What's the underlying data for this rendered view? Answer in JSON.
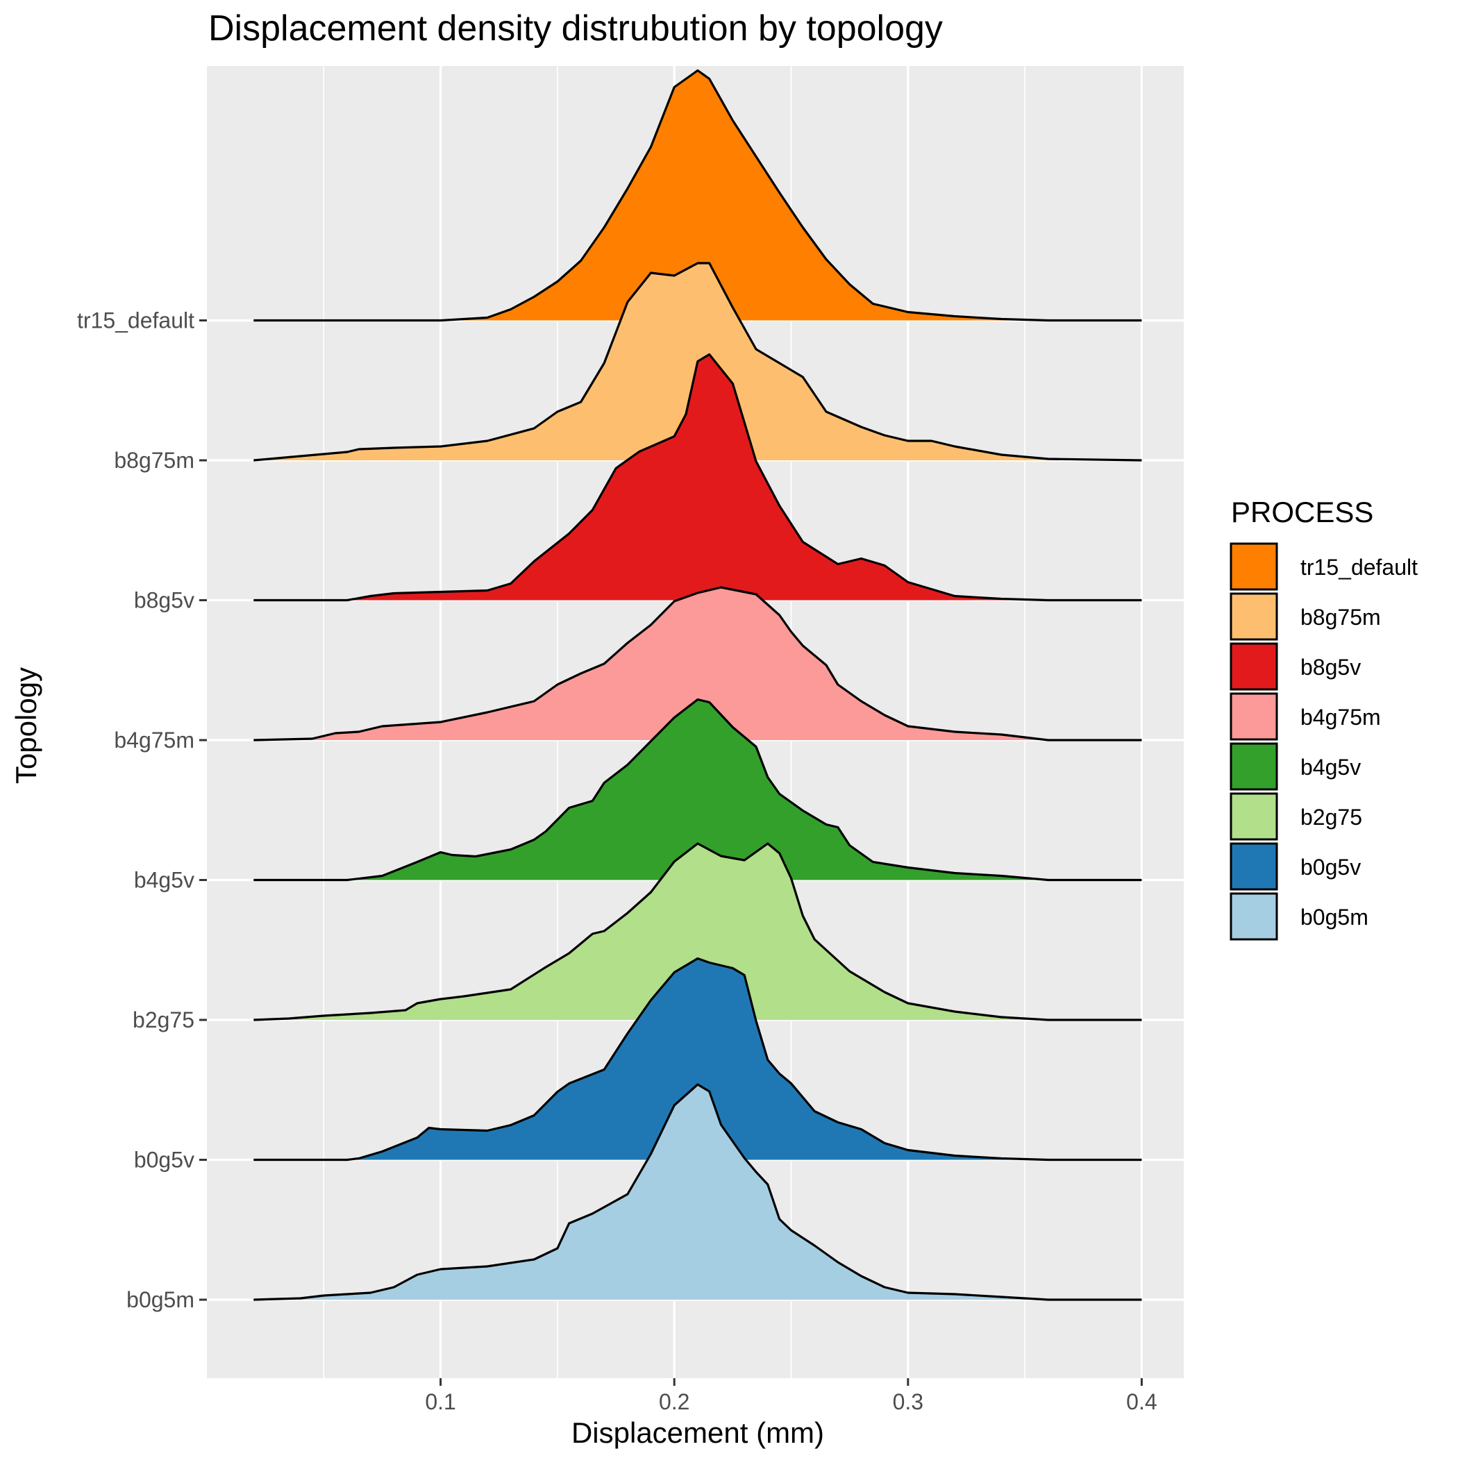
{
  "chart_data": {
    "type": "area",
    "subtype": "ridgeline",
    "title": "Displacement density distrubution by topology",
    "xlabel": "Displacement (mm)",
    "ylabel": "Topology",
    "xlim": [
      0.0,
      0.418
    ],
    "x_ticks": [
      "0.1",
      "0.2",
      "0.3",
      "0.4"
    ],
    "x_tick_values": [
      0.1,
      0.2,
      0.3,
      0.4
    ],
    "grid": true,
    "legend": {
      "title": "PROCESS",
      "position": "right"
    },
    "categories": [
      "b0g5m",
      "b0g5v",
      "b2g75",
      "b4g5v",
      "b4g75m",
      "b8g5v",
      "b8g75m",
      "tr15_default"
    ],
    "legend_order": [
      "tr15_default",
      "b8g75m",
      "b8g5v",
      "b4g75m",
      "b4g5v",
      "b2g75",
      "b0g5v",
      "b0g5m"
    ],
    "series": [
      {
        "name": "b0g5m",
        "color": "#a6cee3",
        "points": [
          [
            0.02,
            0
          ],
          [
            0.04,
            0.01
          ],
          [
            0.05,
            0.03
          ],
          [
            0.06,
            0.04
          ],
          [
            0.07,
            0.05
          ],
          [
            0.08,
            0.09
          ],
          [
            0.09,
            0.18
          ],
          [
            0.1,
            0.22
          ],
          [
            0.12,
            0.24
          ],
          [
            0.14,
            0.29
          ],
          [
            0.15,
            0.37
          ],
          [
            0.155,
            0.55
          ],
          [
            0.165,
            0.62
          ],
          [
            0.18,
            0.76
          ],
          [
            0.19,
            1.05
          ],
          [
            0.2,
            1.4
          ],
          [
            0.21,
            1.55
          ],
          [
            0.215,
            1.5
          ],
          [
            0.22,
            1.26
          ],
          [
            0.23,
            1.02
          ],
          [
            0.235,
            0.92
          ],
          [
            0.24,
            0.83
          ],
          [
            0.245,
            0.58
          ],
          [
            0.25,
            0.5
          ],
          [
            0.26,
            0.39
          ],
          [
            0.27,
            0.27
          ],
          [
            0.28,
            0.17
          ],
          [
            0.29,
            0.09
          ],
          [
            0.3,
            0.05
          ],
          [
            0.32,
            0.04
          ],
          [
            0.34,
            0.02
          ],
          [
            0.36,
            0
          ],
          [
            0.4,
            0
          ]
        ]
      },
      {
        "name": "b0g5v",
        "color": "#1f78b4",
        "points": [
          [
            0.02,
            0
          ],
          [
            0.06,
            0
          ],
          [
            0.065,
            0.01
          ],
          [
            0.075,
            0.06
          ],
          [
            0.09,
            0.16
          ],
          [
            0.095,
            0.23
          ],
          [
            0.1,
            0.22
          ],
          [
            0.12,
            0.21
          ],
          [
            0.13,
            0.25
          ],
          [
            0.14,
            0.32
          ],
          [
            0.15,
            0.49
          ],
          [
            0.155,
            0.55
          ],
          [
            0.17,
            0.65
          ],
          [
            0.18,
            0.91
          ],
          [
            0.19,
            1.15
          ],
          [
            0.2,
            1.35
          ],
          [
            0.21,
            1.45
          ],
          [
            0.215,
            1.42
          ],
          [
            0.225,
            1.38
          ],
          [
            0.23,
            1.33
          ],
          [
            0.235,
            1.0
          ],
          [
            0.24,
            0.72
          ],
          [
            0.245,
            0.62
          ],
          [
            0.25,
            0.55
          ],
          [
            0.26,
            0.35
          ],
          [
            0.27,
            0.27
          ],
          [
            0.28,
            0.22
          ],
          [
            0.29,
            0.12
          ],
          [
            0.3,
            0.07
          ],
          [
            0.32,
            0.03
          ],
          [
            0.34,
            0.01
          ],
          [
            0.36,
            0
          ],
          [
            0.4,
            0
          ]
        ]
      },
      {
        "name": "b2g75",
        "color": "#b2df8a",
        "points": [
          [
            0.02,
            0
          ],
          [
            0.035,
            0.01
          ],
          [
            0.05,
            0.03
          ],
          [
            0.07,
            0.05
          ],
          [
            0.085,
            0.07
          ],
          [
            0.09,
            0.12
          ],
          [
            0.1,
            0.15
          ],
          [
            0.11,
            0.17
          ],
          [
            0.13,
            0.22
          ],
          [
            0.145,
            0.38
          ],
          [
            0.155,
            0.48
          ],
          [
            0.16,
            0.55
          ],
          [
            0.165,
            0.62
          ],
          [
            0.17,
            0.64
          ],
          [
            0.18,
            0.77
          ],
          [
            0.19,
            0.92
          ],
          [
            0.2,
            1.14
          ],
          [
            0.21,
            1.27
          ],
          [
            0.22,
            1.18
          ],
          [
            0.23,
            1.15
          ],
          [
            0.24,
            1.27
          ],
          [
            0.245,
            1.2
          ],
          [
            0.25,
            1.02
          ],
          [
            0.255,
            0.75
          ],
          [
            0.26,
            0.58
          ],
          [
            0.275,
            0.35
          ],
          [
            0.29,
            0.2
          ],
          [
            0.3,
            0.12
          ],
          [
            0.32,
            0.06
          ],
          [
            0.34,
            0.02
          ],
          [
            0.36,
            0
          ],
          [
            0.4,
            0
          ]
        ]
      },
      {
        "name": "b4g5v",
        "color": "#33a02c",
        "points": [
          [
            0.02,
            0
          ],
          [
            0.06,
            0
          ],
          [
            0.075,
            0.03
          ],
          [
            0.09,
            0.13
          ],
          [
            0.1,
            0.2
          ],
          [
            0.105,
            0.18
          ],
          [
            0.115,
            0.17
          ],
          [
            0.13,
            0.22
          ],
          [
            0.14,
            0.29
          ],
          [
            0.145,
            0.35
          ],
          [
            0.155,
            0.52
          ],
          [
            0.165,
            0.57
          ],
          [
            0.17,
            0.7
          ],
          [
            0.18,
            0.83
          ],
          [
            0.19,
            1.0
          ],
          [
            0.2,
            1.17
          ],
          [
            0.21,
            1.3
          ],
          [
            0.215,
            1.28
          ],
          [
            0.225,
            1.1
          ],
          [
            0.23,
            1.03
          ],
          [
            0.235,
            0.96
          ],
          [
            0.24,
            0.74
          ],
          [
            0.245,
            0.62
          ],
          [
            0.255,
            0.5
          ],
          [
            0.265,
            0.4
          ],
          [
            0.27,
            0.38
          ],
          [
            0.275,
            0.25
          ],
          [
            0.285,
            0.13
          ],
          [
            0.3,
            0.09
          ],
          [
            0.32,
            0.05
          ],
          [
            0.34,
            0.03
          ],
          [
            0.36,
            0
          ],
          [
            0.4,
            0
          ]
        ]
      },
      {
        "name": "b4g75m",
        "color": "#fb9a99",
        "points": [
          [
            0.02,
            0
          ],
          [
            0.045,
            0.01
          ],
          [
            0.055,
            0.05
          ],
          [
            0.065,
            0.06
          ],
          [
            0.075,
            0.1
          ],
          [
            0.1,
            0.13
          ],
          [
            0.12,
            0.2
          ],
          [
            0.14,
            0.28
          ],
          [
            0.15,
            0.4
          ],
          [
            0.16,
            0.48
          ],
          [
            0.17,
            0.55
          ],
          [
            0.18,
            0.7
          ],
          [
            0.19,
            0.83
          ],
          [
            0.2,
            1.0
          ],
          [
            0.21,
            1.06
          ],
          [
            0.22,
            1.1
          ],
          [
            0.235,
            1.05
          ],
          [
            0.245,
            0.9
          ],
          [
            0.25,
            0.78
          ],
          [
            0.255,
            0.68
          ],
          [
            0.265,
            0.54
          ],
          [
            0.27,
            0.4
          ],
          [
            0.28,
            0.28
          ],
          [
            0.29,
            0.18
          ],
          [
            0.3,
            0.1
          ],
          [
            0.32,
            0.06
          ],
          [
            0.34,
            0.04
          ],
          [
            0.36,
            0
          ],
          [
            0.4,
            0
          ]
        ]
      },
      {
        "name": "b8g5v",
        "color": "#e31a1c",
        "points": [
          [
            0.02,
            0
          ],
          [
            0.06,
            0
          ],
          [
            0.07,
            0.03
          ],
          [
            0.08,
            0.05
          ],
          [
            0.1,
            0.06
          ],
          [
            0.12,
            0.07
          ],
          [
            0.13,
            0.12
          ],
          [
            0.14,
            0.28
          ],
          [
            0.155,
            0.48
          ],
          [
            0.165,
            0.65
          ],
          [
            0.175,
            0.95
          ],
          [
            0.185,
            1.07
          ],
          [
            0.2,
            1.18
          ],
          [
            0.205,
            1.34
          ],
          [
            0.21,
            1.72
          ],
          [
            0.215,
            1.77
          ],
          [
            0.225,
            1.56
          ],
          [
            0.235,
            1.0
          ],
          [
            0.245,
            0.68
          ],
          [
            0.255,
            0.42
          ],
          [
            0.27,
            0.26
          ],
          [
            0.28,
            0.3
          ],
          [
            0.29,
            0.25
          ],
          [
            0.3,
            0.13
          ],
          [
            0.32,
            0.03
          ],
          [
            0.34,
            0.01
          ],
          [
            0.36,
            0
          ],
          [
            0.4,
            0
          ]
        ]
      },
      {
        "name": "b8g75m",
        "color": "#fdbf6f",
        "points": [
          [
            0.02,
            0
          ],
          [
            0.04,
            0.03
          ],
          [
            0.06,
            0.06
          ],
          [
            0.065,
            0.08
          ],
          [
            0.08,
            0.09
          ],
          [
            0.1,
            0.1
          ],
          [
            0.12,
            0.14
          ],
          [
            0.14,
            0.23
          ],
          [
            0.15,
            0.35
          ],
          [
            0.16,
            0.42
          ],
          [
            0.17,
            0.7
          ],
          [
            0.18,
            1.14
          ],
          [
            0.19,
            1.35
          ],
          [
            0.2,
            1.33
          ],
          [
            0.21,
            1.42
          ],
          [
            0.215,
            1.42
          ],
          [
            0.225,
            1.1
          ],
          [
            0.235,
            0.8
          ],
          [
            0.245,
            0.7
          ],
          [
            0.255,
            0.6
          ],
          [
            0.265,
            0.35
          ],
          [
            0.28,
            0.24
          ],
          [
            0.29,
            0.18
          ],
          [
            0.3,
            0.14
          ],
          [
            0.31,
            0.14
          ],
          [
            0.32,
            0.1
          ],
          [
            0.34,
            0.04
          ],
          [
            0.36,
            0.01
          ],
          [
            0.4,
            0
          ]
        ]
      },
      {
        "name": "tr15_default",
        "color": "#ff7f00",
        "points": [
          [
            0.02,
            0
          ],
          [
            0.1,
            0
          ],
          [
            0.12,
            0.02
          ],
          [
            0.13,
            0.08
          ],
          [
            0.14,
            0.17
          ],
          [
            0.15,
            0.28
          ],
          [
            0.16,
            0.43
          ],
          [
            0.17,
            0.67
          ],
          [
            0.18,
            0.95
          ],
          [
            0.19,
            1.25
          ],
          [
            0.2,
            1.68
          ],
          [
            0.21,
            1.8
          ],
          [
            0.215,
            1.74
          ],
          [
            0.225,
            1.44
          ],
          [
            0.235,
            1.18
          ],
          [
            0.245,
            0.92
          ],
          [
            0.255,
            0.67
          ],
          [
            0.265,
            0.44
          ],
          [
            0.275,
            0.26
          ],
          [
            0.285,
            0.12
          ],
          [
            0.3,
            0.06
          ],
          [
            0.32,
            0.03
          ],
          [
            0.34,
            0.01
          ],
          [
            0.36,
            0
          ],
          [
            0.4,
            0
          ]
        ]
      }
    ]
  }
}
